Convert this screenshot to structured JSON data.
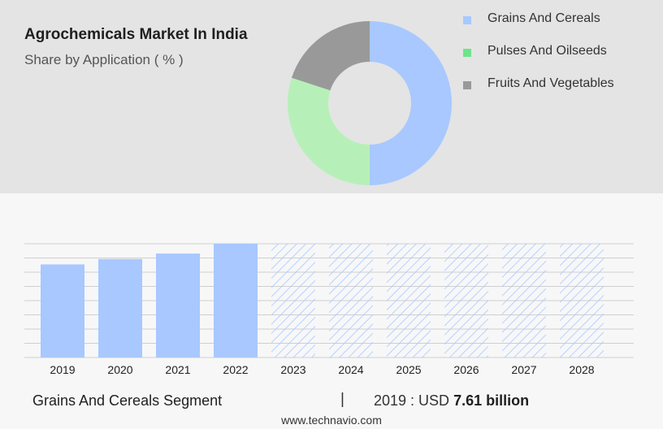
{
  "header": {
    "title": "Agrochemicals Market In India",
    "subtitle": "Share by Application ( % )"
  },
  "colors": {
    "grains": "#a8c8ff",
    "pulses": "#b6f0b8",
    "fruits": "#999999",
    "legend_pulses": "#6fe38a",
    "bar": "#a8c8ff",
    "hatch": "#a8c8ff"
  },
  "chart_data": [
    {
      "type": "pie",
      "donut": true,
      "series": [
        {
          "name": "Grains And Cereals",
          "value": 50
        },
        {
          "name": "Pulses And Oilseeds",
          "value": 30
        },
        {
          "name": "Fruits And Vegetables",
          "value": 20
        }
      ],
      "legend_position": "right"
    },
    {
      "type": "bar",
      "categories": [
        "2019",
        "2020",
        "2021",
        "2022",
        "2023",
        "2024",
        "2025",
        "2026",
        "2027",
        "2028"
      ],
      "values": [
        7.61,
        8.05,
        8.5,
        9.3,
        null,
        null,
        null,
        null,
        null,
        null
      ],
      "forecast_categories": [
        "2023",
        "2024",
        "2025",
        "2026",
        "2027",
        "2028"
      ],
      "forecast_display_level": 9.3,
      "ylim": [
        0,
        9.3
      ],
      "grid": true
    }
  ],
  "footer": {
    "segment": "Grains And Cereals Segment",
    "divider": "|",
    "year_label": "2019 : USD",
    "amount": "7.61 billion",
    "source": "www.technavio.com"
  }
}
